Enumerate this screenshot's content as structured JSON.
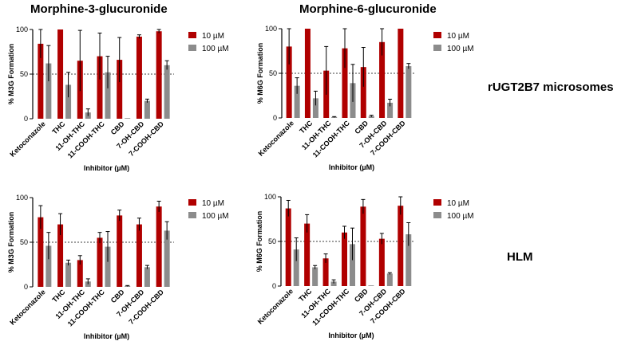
{
  "titles": {
    "left": "Morphine-3-glucuronide",
    "right": "Morphine-6-glucuronide"
  },
  "row_labels": {
    "top": "rUGT2B7 microsomes",
    "bottom": "HLM"
  },
  "colors": {
    "series_10": "#b00000",
    "series_100": "#8c8c8c"
  },
  "chart_data": [
    {
      "type": "bar",
      "id": "m3g_rugt",
      "categories": [
        "Ketoconazole",
        "THC",
        "11-OH-THC",
        "11-COOH-THC",
        "CBD",
        "7-OH-CBD",
        "7-COOH-CBD"
      ],
      "series": [
        {
          "name": "10 µM",
          "values": [
            84,
            100,
            65,
            70,
            66,
            92,
            98
          ],
          "errors": [
            16,
            0,
            34,
            26,
            25,
            2,
            2
          ]
        },
        {
          "name": "100 µM",
          "values": [
            62,
            38,
            7,
            52,
            0,
            20,
            60
          ],
          "errors": [
            20,
            14,
            4,
            18,
            0,
            2,
            5
          ]
        }
      ],
      "xlabel": "Inhibitor (µM)",
      "ylabel": "% M3G Formation",
      "ylim": [
        0,
        100
      ],
      "yticks": [
        0,
        50,
        100
      ],
      "reference_line": 50
    },
    {
      "type": "bar",
      "id": "m6g_rugt",
      "categories": [
        "Ketoconazole",
        "THC",
        "11-OH-THC",
        "11-COOH-THC",
        "CBD",
        "7-OH-CBD",
        "7-COOH-CBD"
      ],
      "series": [
        {
          "name": "10 µM",
          "values": [
            80,
            100,
            53,
            78,
            57,
            85,
            100
          ],
          "errors": [
            20,
            0,
            27,
            22,
            22,
            15,
            0
          ]
        },
        {
          "name": "100 µM",
          "values": [
            36,
            22,
            1,
            39,
            2,
            17,
            58
          ],
          "errors": [
            9,
            8,
            0.5,
            21,
            1,
            4,
            3
          ]
        }
      ],
      "xlabel": "Inhibitor (µM)",
      "ylabel": "% M6G Formation",
      "ylim": [
        0,
        100
      ],
      "yticks": [
        0,
        50,
        100
      ],
      "reference_line": 50
    },
    {
      "type": "bar",
      "id": "m3g_hlm",
      "categories": [
        "Ketoconazole",
        "THC",
        "11-OH-THC",
        "11-COOH-THC",
        "CBD",
        "7-OH-CBD",
        "7-COOH-CBD"
      ],
      "series": [
        {
          "name": "10 µM",
          "values": [
            78,
            70,
            30,
            55,
            80,
            70,
            90
          ],
          "errors": [
            13,
            12,
            5,
            6,
            6,
            7,
            6
          ]
        },
        {
          "name": "100 µM",
          "values": [
            46,
            27,
            6,
            45,
            1,
            22,
            63
          ],
          "errors": [
            15,
            3,
            3,
            17,
            0.5,
            2,
            10
          ]
        }
      ],
      "xlabel": "Inhibitor (µM)",
      "ylabel": "% M3G Formation",
      "ylim": [
        0,
        100
      ],
      "yticks": [
        0,
        50,
        100
      ],
      "reference_line": 50
    },
    {
      "type": "bar",
      "id": "m6g_hlm",
      "categories": [
        "Ketoconazole",
        "THC",
        "11-OH-THC",
        "11-COOH-THC",
        "CBD",
        "7-OH-CBD",
        "7-COOH-CBD"
      ],
      "series": [
        {
          "name": "10 µM",
          "values": [
            87,
            70,
            31,
            60,
            89,
            53,
            90
          ],
          "errors": [
            9,
            10,
            5,
            7,
            8,
            6,
            10
          ]
        },
        {
          "name": "100 µM",
          "values": [
            41,
            21,
            5,
            47,
            0,
            14,
            58
          ],
          "errors": [
            13,
            2,
            2,
            18,
            0,
            1,
            13
          ]
        }
      ],
      "xlabel": "Inhibitor (µM)",
      "ylabel": "% M6G Formation",
      "ylim": [
        0,
        100
      ],
      "yticks": [
        0,
        50,
        100
      ],
      "reference_line": 50
    }
  ]
}
